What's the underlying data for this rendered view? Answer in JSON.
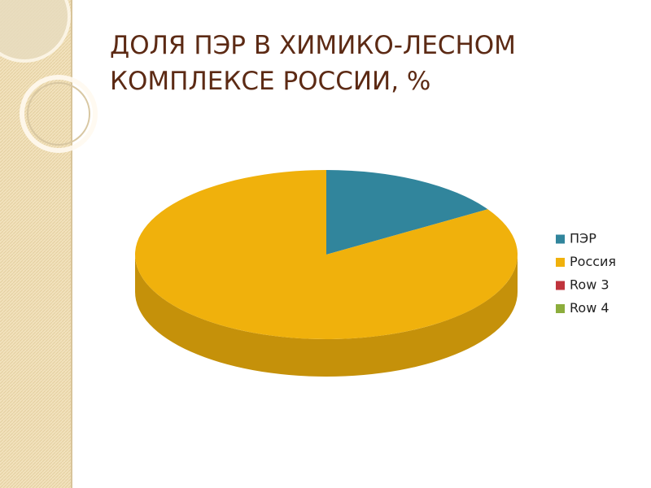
{
  "chart_data": {
    "type": "pie",
    "title": [
      "ДОЛЯ ПЭР В ХИМИКО-ЛЕСНОМ",
      "КОМПЛЕКСЕ РОССИИ, %"
    ],
    "categories": [
      "ПЭР",
      "Россия",
      "Row 3",
      "Row 4"
    ],
    "values": [
      16,
      84,
      null,
      null
    ],
    "colors": [
      "#31859c",
      "#f0b10c",
      "#c0343c",
      "#8cad3c"
    ],
    "legend": "right"
  }
}
